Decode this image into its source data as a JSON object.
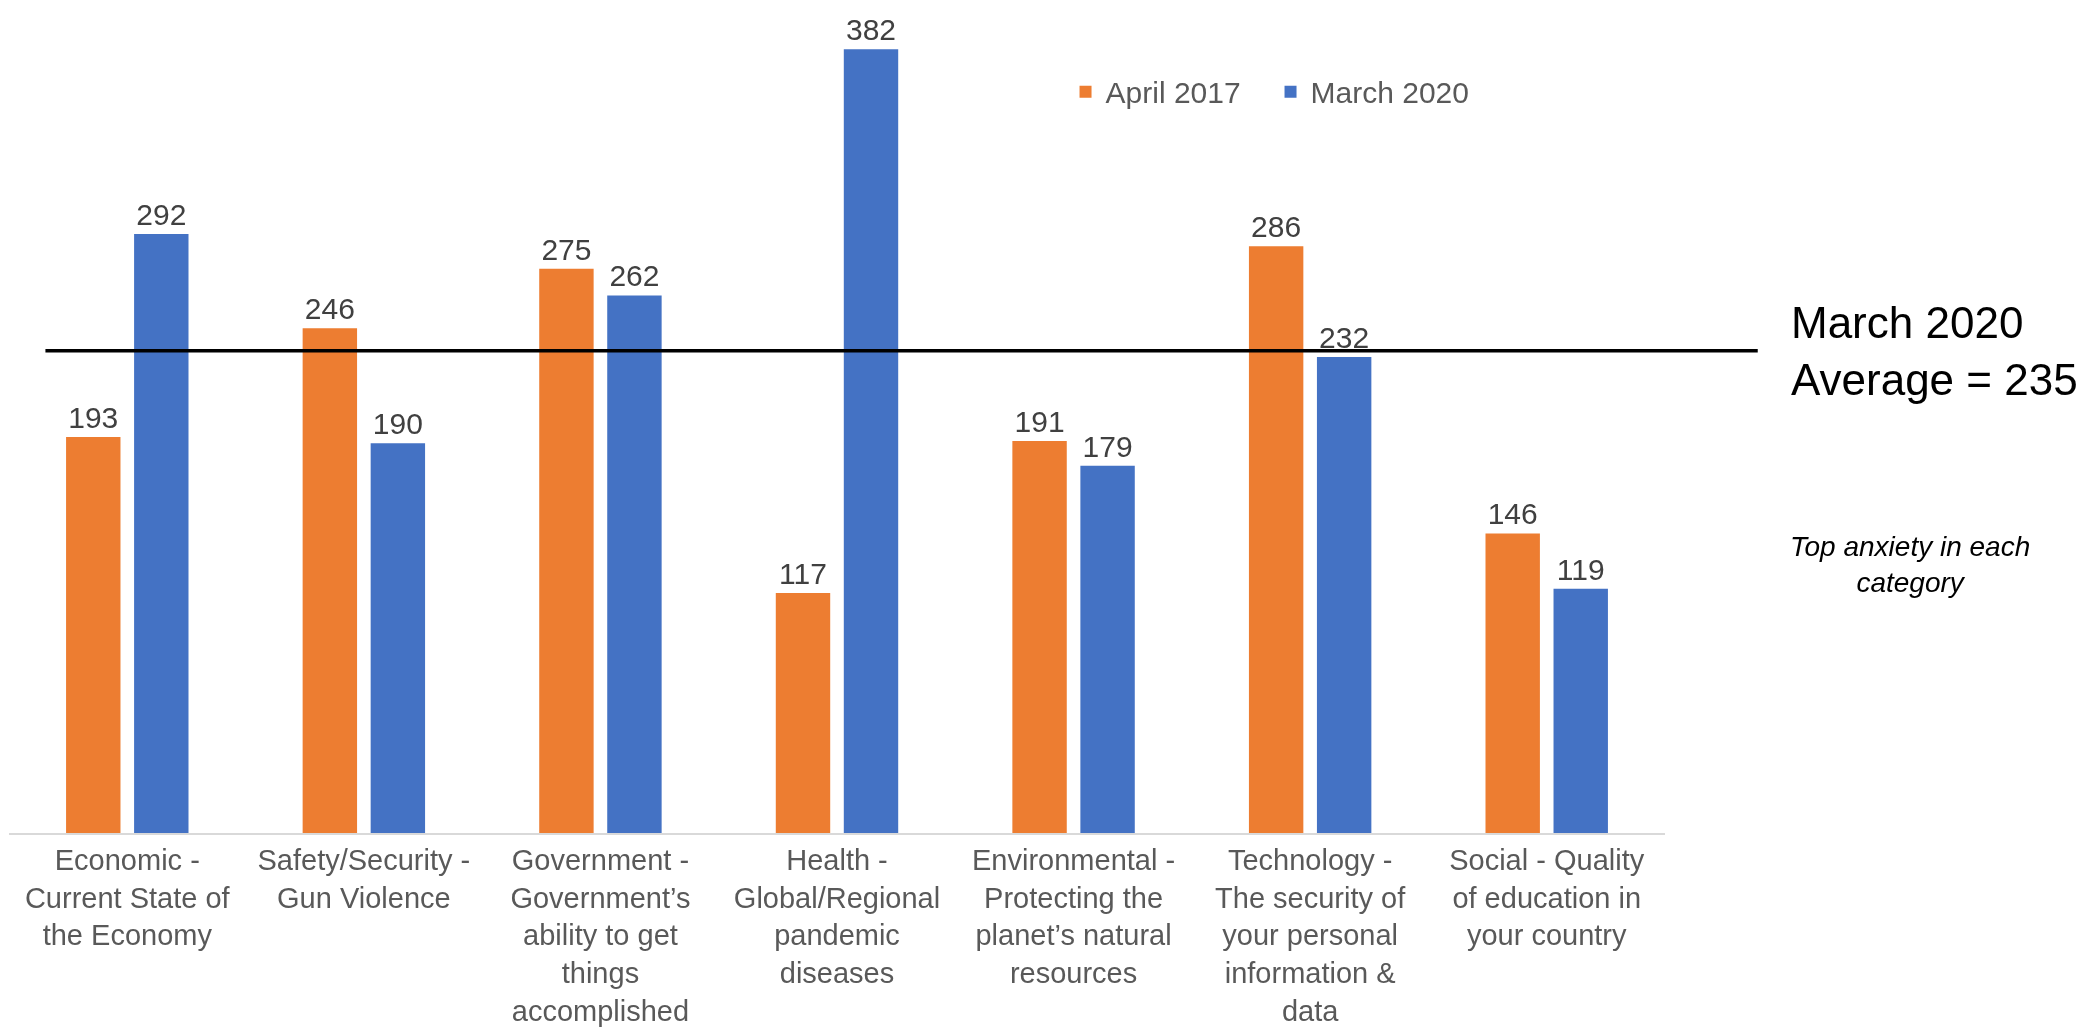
{
  "chart_data": {
    "type": "bar",
    "categories": [
      "Economic -\nCurrent State of\nthe Economy",
      "Safety/Security -\nGun Violence",
      "Government -\nGovernment’s\nability to get\nthings\naccomplished",
      "Health -\nGlobal/Regional\npandemic\ndiseases",
      "Environmental -\nProtecting the\nplanet’s natural\nresources",
      "Technology -\nThe security of\nyour personal\ninformation &\ndata",
      "Social - Quality\nof education in\nyour country"
    ],
    "series": [
      {
        "name": "April 2017",
        "color": "#ed7d31",
        "values": [
          193,
          246,
          275,
          117,
          191,
          286,
          146
        ]
      },
      {
        "name": "March 2020",
        "color": "#4472c4",
        "values": [
          292,
          190,
          262,
          382,
          179,
          232,
          119
        ]
      }
    ],
    "data_labels": true,
    "ref_lines": [
      {
        "axis": "y",
        "value": 235,
        "label": "March 2020\nAverage = 235",
        "color": "#000000"
      }
    ],
    "annotations": [
      "Top anxiety in each category"
    ],
    "legend": "top right",
    "tick_labels": "x"
  }
}
